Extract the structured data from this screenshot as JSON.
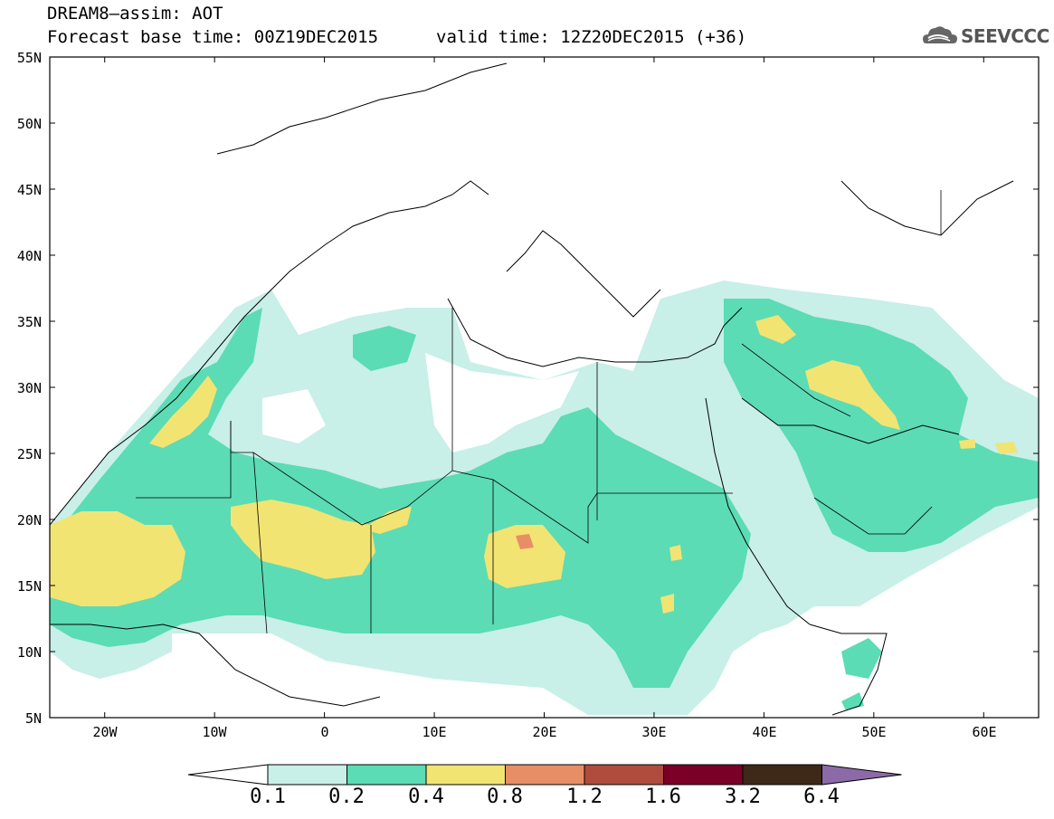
{
  "title": {
    "line1": "DREAM8–assim: AOT",
    "line2": "Forecast base time: 00Z19DEC2015",
    "valid": "valid time: 12Z20DEC2015 (+36)"
  },
  "logo": {
    "icon": "cloud-logo-icon",
    "text": "SEEVCCC"
  },
  "axes": {
    "lat_labels": [
      "55N",
      "50N",
      "45N",
      "40N",
      "35N",
      "30N",
      "25N",
      "20N",
      "15N",
      "10N",
      "5N"
    ],
    "lon_labels": [
      "20W",
      "10W",
      "0",
      "10E",
      "20E",
      "30E",
      "40E",
      "50E",
      "60E"
    ],
    "lat_range": [
      5,
      55
    ],
    "lon_range": [
      -25,
      65
    ]
  },
  "colorbar": {
    "labels": [
      "0.1",
      "0.2",
      "0.4",
      "0.8",
      "1.2",
      "1.6",
      "3.2",
      "6.4"
    ],
    "colors": [
      "#c8efe8",
      "#5bdcb4",
      "#f2e472",
      "#e88e66",
      "#b04c3e",
      "#7a0028",
      "#3e2818",
      "#8c6aa8"
    ]
  }
}
